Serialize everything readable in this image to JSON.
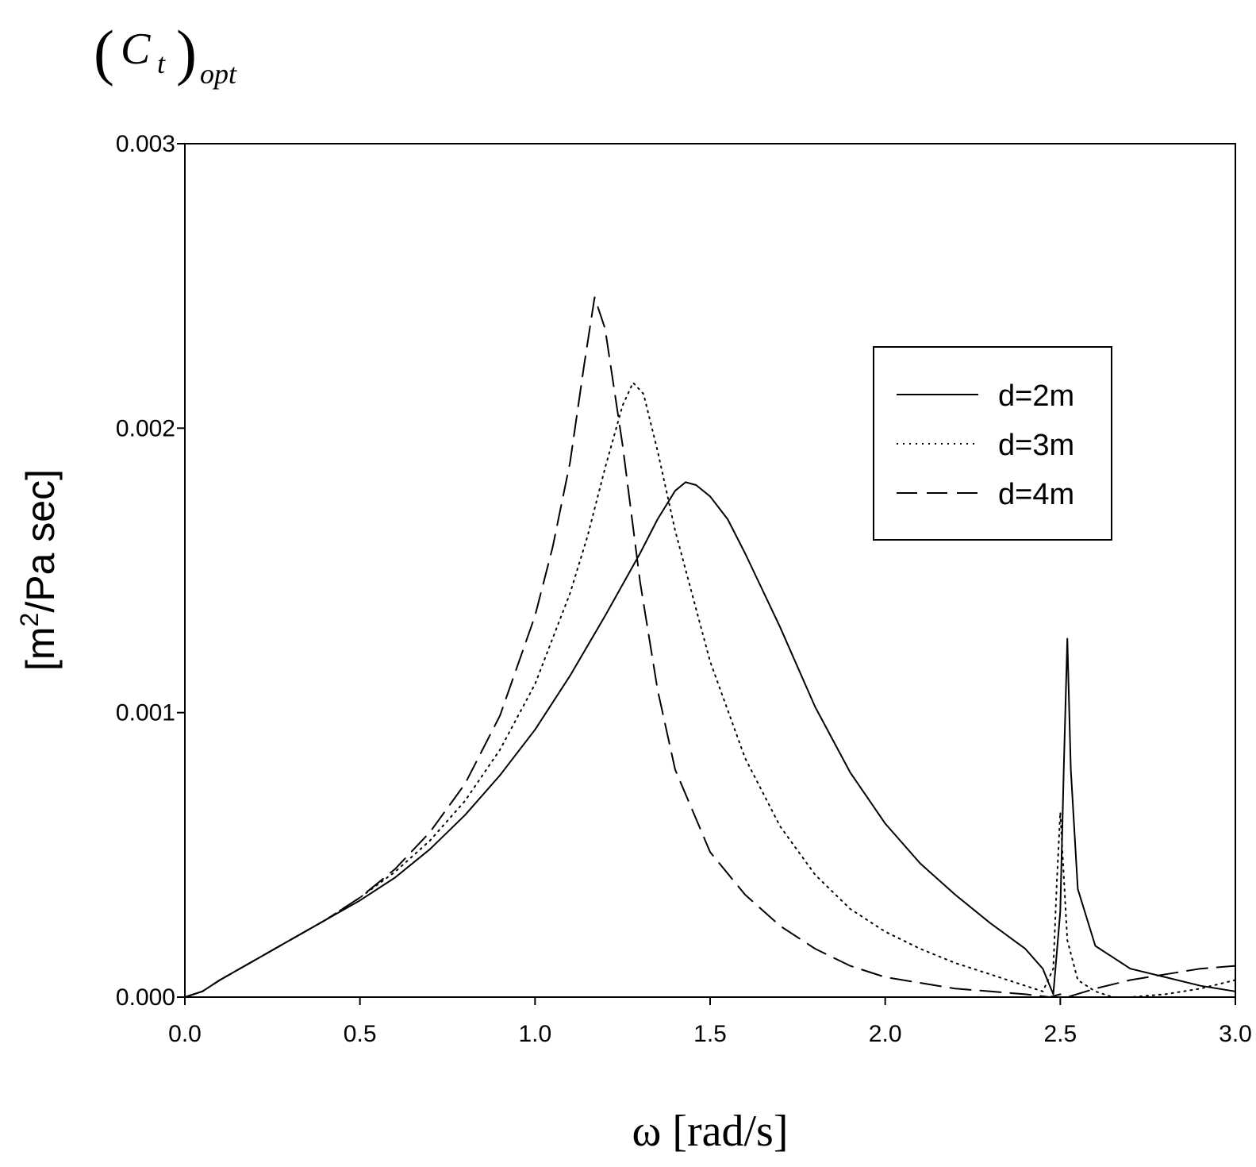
{
  "chart_data": {
    "type": "line",
    "title": {
      "open_paren": "(",
      "main": "C",
      "inner_sub": "t",
      "close_paren": ")",
      "outer_sub": "opt"
    },
    "xlabel": "ω [rad/s]",
    "ylabel": {
      "prefix": "[m",
      "sup": "2",
      "suffix": "/Pa sec]"
    },
    "xlim": [
      0,
      3.0
    ],
    "ylim": [
      0,
      0.003
    ],
    "xticks": [
      "0.0",
      "0.5",
      "1.0",
      "1.5",
      "2.0",
      "2.5",
      "3.0"
    ],
    "yticks": [
      "0.000",
      "0.001",
      "0.002",
      "0.003"
    ],
    "grid": false,
    "legend_position": "upper-right",
    "series": [
      {
        "name": "d=2m",
        "style": "solid",
        "x": [
          0,
          0.05,
          0.1,
          0.2,
          0.3,
          0.4,
          0.5,
          0.6,
          0.7,
          0.8,
          0.9,
          1.0,
          1.1,
          1.2,
          1.3,
          1.35,
          1.4,
          1.43,
          1.46,
          1.5,
          1.55,
          1.6,
          1.7,
          1.8,
          1.9,
          2.0,
          2.1,
          2.2,
          2.3,
          2.4,
          2.45,
          2.48,
          2.5,
          2.51,
          2.52,
          2.53,
          2.55,
          2.6,
          2.7,
          2.8,
          2.9,
          3.0
        ],
        "y": [
          0.0,
          2e-05,
          6e-05,
          0.00013,
          0.0002,
          0.00027,
          0.00034,
          0.00042,
          0.00052,
          0.00064,
          0.00078,
          0.00094,
          0.00113,
          0.00134,
          0.00156,
          0.00168,
          0.00178,
          0.00181,
          0.0018,
          0.00176,
          0.00168,
          0.00156,
          0.0013,
          0.00102,
          0.00079,
          0.00061,
          0.00047,
          0.00036,
          0.00026,
          0.00017,
          0.0001,
          1e-05,
          0.0003,
          0.0008,
          0.00126,
          0.0008,
          0.00038,
          0.00018,
          0.0001,
          7e-05,
          4e-05,
          2e-05
        ]
      },
      {
        "name": "d=3m",
        "style": "dotted",
        "x": [
          0,
          0.05,
          0.1,
          0.2,
          0.3,
          0.4,
          0.5,
          0.6,
          0.7,
          0.8,
          0.9,
          1.0,
          1.1,
          1.15,
          1.2,
          1.25,
          1.28,
          1.31,
          1.35,
          1.4,
          1.5,
          1.6,
          1.7,
          1.8,
          1.9,
          2.0,
          2.1,
          2.2,
          2.3,
          2.4,
          2.45,
          2.48,
          2.49,
          2.5,
          2.52,
          2.55,
          2.6,
          2.65,
          2.7,
          2.8,
          2.9,
          3.0
        ],
        "y": [
          0.0,
          2e-05,
          6e-05,
          0.00013,
          0.0002,
          0.00027,
          0.00035,
          0.00044,
          0.00055,
          0.00069,
          0.00087,
          0.0011,
          0.00142,
          0.00162,
          0.00186,
          0.00208,
          0.00216,
          0.00212,
          0.00192,
          0.00164,
          0.00118,
          0.00084,
          0.0006,
          0.00043,
          0.00031,
          0.00023,
          0.00017,
          0.00012,
          8e-05,
          4e-05,
          2e-05,
          0.0001,
          0.0004,
          0.00065,
          0.0002,
          6e-05,
          2e-05,
          0.0,
          0.0,
          1e-05,
          3e-05,
          6e-05
        ]
      },
      {
        "name": "d=4m",
        "style": "dashed",
        "x": [
          0,
          0.05,
          0.1,
          0.2,
          0.3,
          0.4,
          0.5,
          0.6,
          0.7,
          0.8,
          0.9,
          1.0,
          1.05,
          1.1,
          1.14,
          1.17,
          1.2,
          1.25,
          1.3,
          1.35,
          1.4,
          1.5,
          1.6,
          1.7,
          1.8,
          1.9,
          2.0,
          2.1,
          2.2,
          2.3,
          2.4,
          2.47,
          2.5,
          2.52,
          2.6,
          2.7,
          2.8,
          2.9,
          3.0
        ],
        "y": [
          0.0,
          2e-05,
          6e-05,
          0.00013,
          0.0002,
          0.00027,
          0.00035,
          0.00045,
          0.00058,
          0.00075,
          0.00099,
          0.00134,
          0.00158,
          0.00188,
          0.00222,
          0.00246,
          0.00235,
          0.00194,
          0.00146,
          0.00108,
          0.0008,
          0.00051,
          0.00036,
          0.00025,
          0.00017,
          0.00011,
          7e-05,
          5e-05,
          3e-05,
          2e-05,
          1e-05,
          0.0,
          1e-05,
          0.0,
          3e-05,
          6e-05,
          8e-05,
          0.0001,
          0.00011
        ]
      }
    ]
  }
}
